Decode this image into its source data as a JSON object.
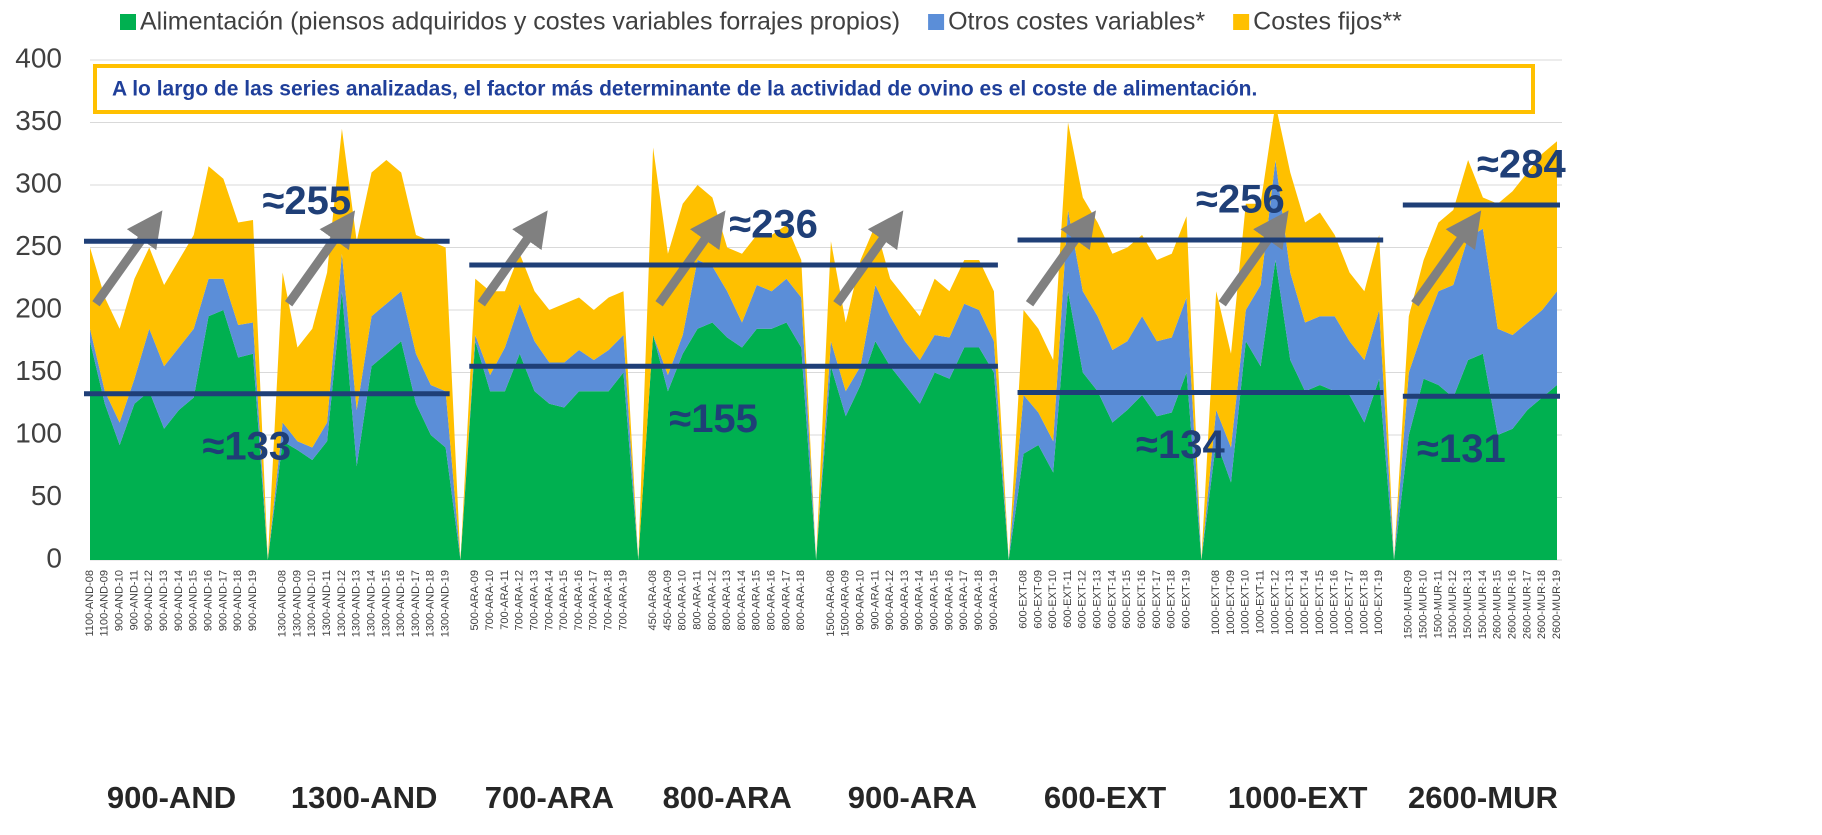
{
  "chart_data": {
    "type": "stacked_area",
    "subtitle": "A lo largo de las series analizadas, el factor más determinante de la actividad de ovino es el coste de alimentación.",
    "ylim": [
      0,
      400
    ],
    "yticks": [
      0,
      50,
      100,
      150,
      200,
      250,
      300,
      350,
      400
    ],
    "grid": true,
    "categories": [
      "1100-AND-08",
      "1100-AND-09",
      "900-AND-10",
      "900-AND-11",
      "900-AND-12",
      "900-AND-13",
      "900-AND-14",
      "900-AND-15",
      "900-AND-16",
      "900-AND-17",
      "900-AND-18",
      "900-AND-19",
      null,
      "1300-AND-08",
      "1300-AND-09",
      "1300-AND-10",
      "1300-AND-11",
      "1300-AND-12",
      "1300-AND-13",
      "1300-AND-14",
      "1300-AND-15",
      "1300-AND-16",
      "1300-AND-17",
      "1300-AND-18",
      "1300-AND-19",
      null,
      "500-ARA-09",
      "700-ARA-10",
      "700-ARA-11",
      "700-ARA-12",
      "700-ARA-13",
      "700-ARA-14",
      "700-ARA-15",
      "700-ARA-16",
      "700-ARA-17",
      "700-ARA-18",
      "700-ARA-19",
      null,
      "450-ARA-08",
      "450-ARA-09",
      "800-ARA-10",
      "800-ARA-11",
      "800-ARA-12",
      "800-ARA-13",
      "800-ARA-14",
      "800-ARA-15",
      "800-ARA-16",
      "800-ARA-17",
      "800-ARA-18",
      null,
      "1500-ARA-08",
      "1500-ARA-09",
      "900-ARA-10",
      "900-ARA-11",
      "900-ARA-12",
      "900-ARA-13",
      "900-ARA-14",
      "900-ARA-15",
      "900-ARA-16",
      "900-ARA-17",
      "900-ARA-18",
      "900-ARA-19",
      null,
      "600-EXT-08",
      "600-EXT-09",
      "600-EXT-10",
      "600-EXT-11",
      "600-EXT-12",
      "600-EXT-13",
      "600-EXT-14",
      "600-EXT-15",
      "600-EXT-16",
      "600-EXT-17",
      "600-EXT-18",
      "600-EXT-19",
      null,
      "1000-EXT-08",
      "1000-EXT-09",
      "1000-EXT-10",
      "1000-EXT-11",
      "1000-EXT-12",
      "1000-EXT-13",
      "1000-EXT-14",
      "1000-EXT-15",
      "1000-EXT-16",
      "1000-EXT-17",
      "1000-EXT-18",
      "1000-EXT-19",
      null,
      "1500-MUR-09",
      "1500-MUR-10",
      "1500-MUR-11",
      "1500-MUR-12",
      "1500-MUR-13",
      "1500-MUR-14",
      "2600-MUR-15",
      "2600-MUR-16",
      "2600-MUR-17",
      "2600-MUR-18",
      "2600-MUR-19"
    ],
    "group_labels": [
      "900-AND",
      "1300-AND",
      "700-ARA",
      "800-ARA",
      "900-ARA",
      "600-EXT",
      "1000-EXT",
      "2600-MUR"
    ],
    "series": [
      {
        "name": "Alimentación (piensos adquiridos y costes variables forrajes propios)",
        "color": "#00b050",
        "values": [
          175,
          125,
          92,
          125,
          135,
          105,
          120,
          130,
          195,
          200,
          162,
          165,
          0,
          95,
          88,
          80,
          95,
          215,
          75,
          155,
          165,
          175,
          125,
          100,
          90,
          0,
          175,
          135,
          135,
          165,
          135,
          125,
          122,
          135,
          135,
          135,
          150,
          0,
          180,
          135,
          165,
          185,
          190,
          178,
          170,
          185,
          185,
          190,
          170,
          0,
          155,
          115,
          140,
          175,
          155,
          140,
          125,
          150,
          145,
          170,
          170,
          150,
          0,
          85,
          92,
          70,
          215,
          150,
          135,
          110,
          120,
          132,
          115,
          118,
          150,
          0,
          95,
          62,
          175,
          155,
          240,
          160,
          135,
          140,
          135,
          132,
          110,
          145,
          0,
          100,
          145,
          140,
          130,
          160,
          165,
          100,
          105,
          120,
          130,
          140
        ]
      },
      {
        "name": "Otros costes variables*",
        "color": "#5b8ed8",
        "values": [
          10,
          10,
          18,
          20,
          50,
          50,
          50,
          55,
          30,
          25,
          26,
          25,
          0,
          15,
          7,
          10,
          15,
          30,
          45,
          40,
          40,
          40,
          40,
          40,
          45,
          0,
          5,
          13,
          35,
          40,
          40,
          33,
          36,
          33,
          25,
          33,
          30,
          0,
          0,
          13,
          15,
          55,
          45,
          37,
          20,
          35,
          30,
          35,
          40,
          0,
          20,
          20,
          15,
          45,
          40,
          35,
          35,
          30,
          33,
          35,
          30,
          25,
          0,
          47,
          26,
          25,
          65,
          65,
          60,
          58,
          55,
          63,
          60,
          60,
          60,
          0,
          25,
          28,
          25,
          65,
          80,
          70,
          55,
          55,
          60,
          43,
          50,
          55,
          0,
          50,
          40,
          75,
          90,
          98,
          100,
          85,
          75,
          70,
          70,
          75
        ]
      },
      {
        "name": "Costes fijos**",
        "color": "#ffc000",
        "values": [
          65,
          75,
          75,
          80,
          65,
          65,
          70,
          75,
          90,
          80,
          82,
          82,
          0,
          120,
          75,
          95,
          120,
          100,
          135,
          115,
          115,
          95,
          95,
          115,
          115,
          0,
          45,
          67,
          45,
          40,
          40,
          42,
          47,
          42,
          40,
          42,
          35,
          0,
          150,
          97,
          105,
          60,
          55,
          35,
          55,
          40,
          45,
          43,
          30,
          0,
          80,
          55,
          85,
          48,
          30,
          35,
          35,
          45,
          37,
          35,
          40,
          40,
          0,
          68,
          67,
          65,
          70,
          75,
          75,
          77,
          75,
          65,
          65,
          67,
          65,
          0,
          95,
          75,
          85,
          65,
          45,
          80,
          80,
          83,
          65,
          55,
          55,
          60,
          0,
          45,
          55,
          55,
          60,
          62,
          25,
          100,
          115,
          120,
          125,
          120
        ]
      }
    ],
    "bands": [
      {
        "groups": [
          "900-AND",
          "1300-AND"
        ],
        "upper": {
          "text": "≈255",
          "value": 255
        },
        "lower": {
          "text": "≈133",
          "value": 133
        }
      },
      {
        "groups": [
          "700-ARA",
          "800-ARA",
          "900-ARA"
        ],
        "upper": {
          "text": "≈236",
          "value": 236
        },
        "lower": {
          "text": "≈155",
          "value": 155
        }
      },
      {
        "groups": [
          "600-EXT",
          "1000-EXT"
        ],
        "upper": {
          "text": "≈256",
          "value": 256
        },
        "lower": {
          "text": "≈134",
          "value": 134
        }
      },
      {
        "groups": [
          "2600-MUR"
        ],
        "upper": {
          "text": "≈284",
          "value": 284
        },
        "lower": {
          "text": "≈131",
          "value": 131
        }
      }
    ]
  }
}
